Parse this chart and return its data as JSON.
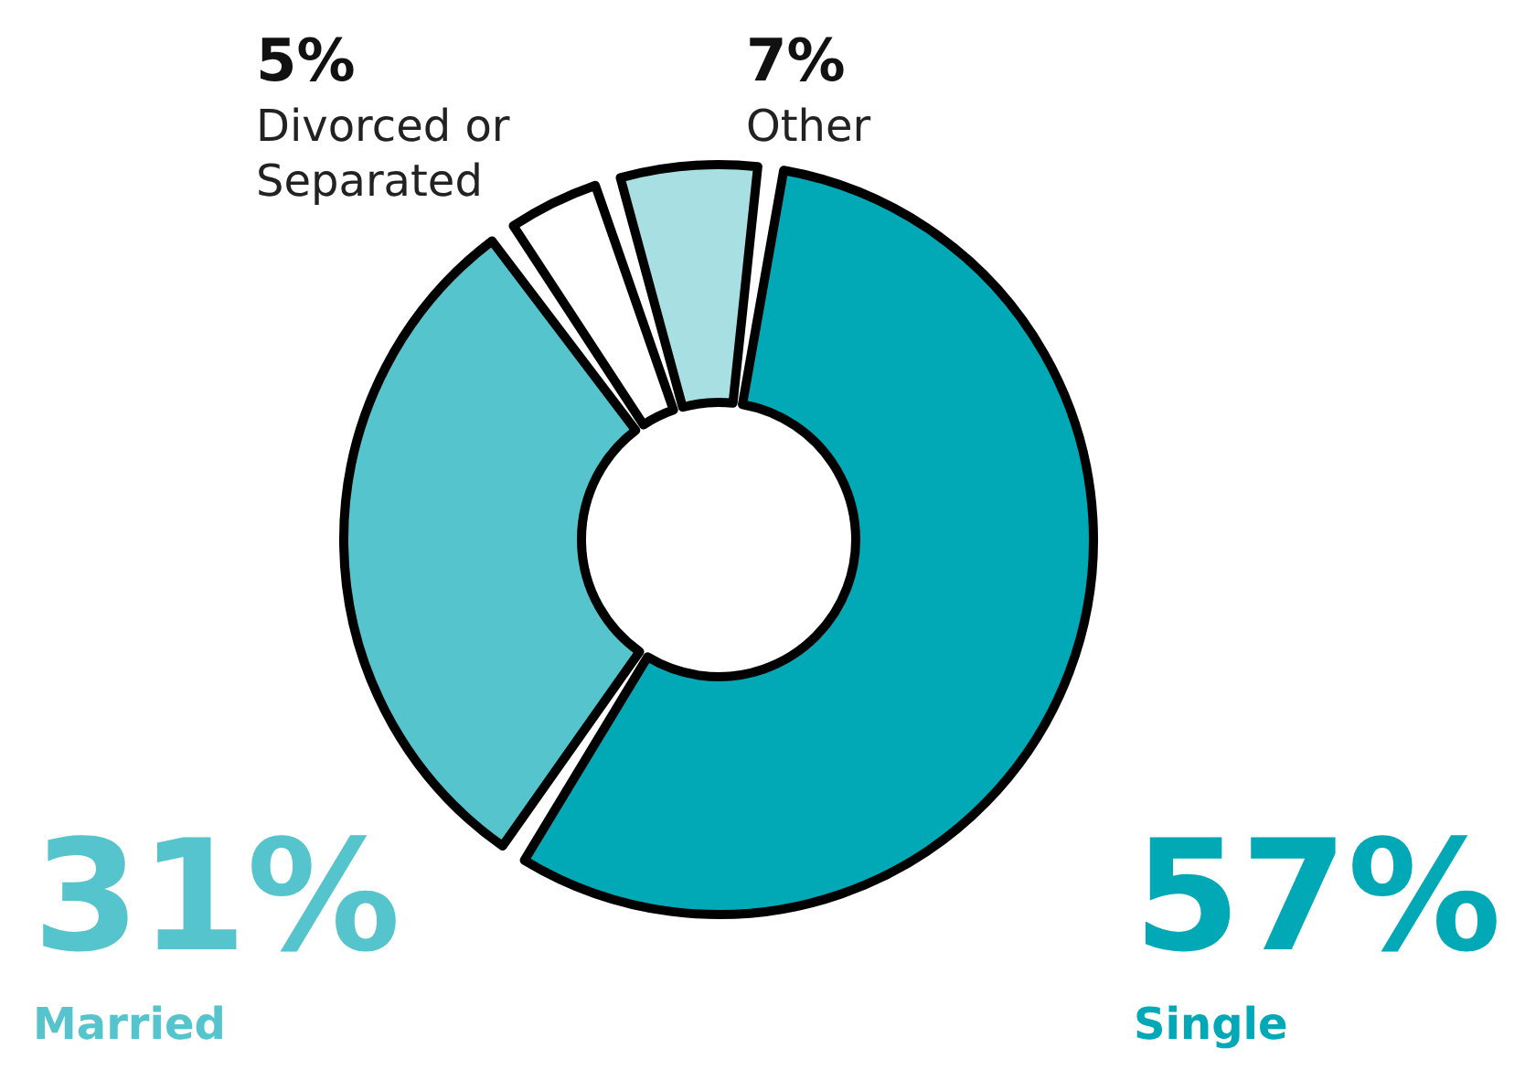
{
  "chart_data": {
    "type": "donut",
    "categories": [
      "Single",
      "Married",
      "Divorced or Separated",
      "Other"
    ],
    "values": [
      57,
      31,
      5,
      7
    ],
    "colors": [
      "#00a9b5",
      "#55c4cc",
      "#ffffff",
      "#a8dfe3"
    ],
    "value_labels": [
      "57%",
      "31%",
      "5%",
      "7%"
    ],
    "legend": false
  }
}
